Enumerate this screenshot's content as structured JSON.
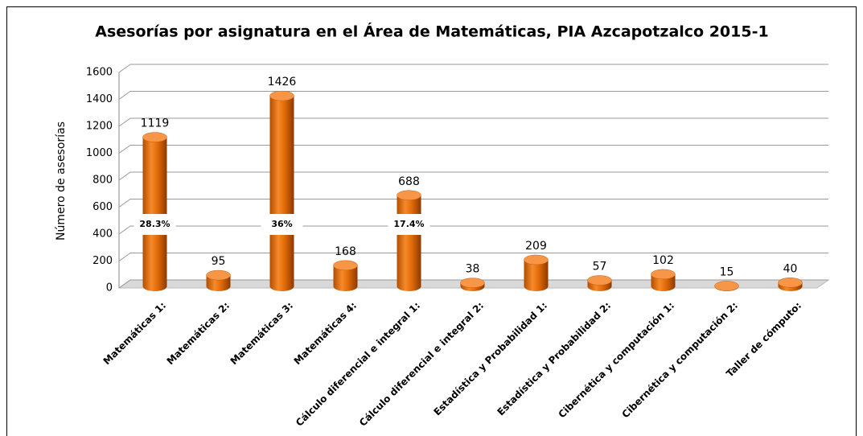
{
  "chart_data": {
    "type": "bar",
    "title": "Asesorías por asignatura en el Área de Matemáticas, PIA Azcapotzalco 2015-1",
    "y_label": "Número de asesorías",
    "categories": [
      "Matemáticas 1:",
      "Matemáticas 2:",
      "Matemáticas 3:",
      "Matemáticas 4:",
      "Cálculo diferencial e integral 1:",
      "Cálculo diferencial e integral 2:",
      "Estadística y Probabilidad 1:",
      "Estadística y Probabilidad 2:",
      "Cibernética y computación 1:",
      "Cibernética y computación 2:",
      "Taller de cómputo:"
    ],
    "values": [
      1119,
      95,
      1426,
      168,
      688,
      38,
      209,
      57,
      102,
      15,
      40
    ],
    "share_labels": [
      "28.3%",
      null,
      "36%",
      null,
      "17.4%",
      null,
      null,
      null,
      null,
      null,
      null
    ],
    "color": "#e46c0a",
    "ylim": [
      0,
      1600
    ],
    "yticks": [
      0,
      200,
      400,
      600,
      800,
      1000,
      1200,
      1400,
      1600
    ],
    "grid": true
  }
}
